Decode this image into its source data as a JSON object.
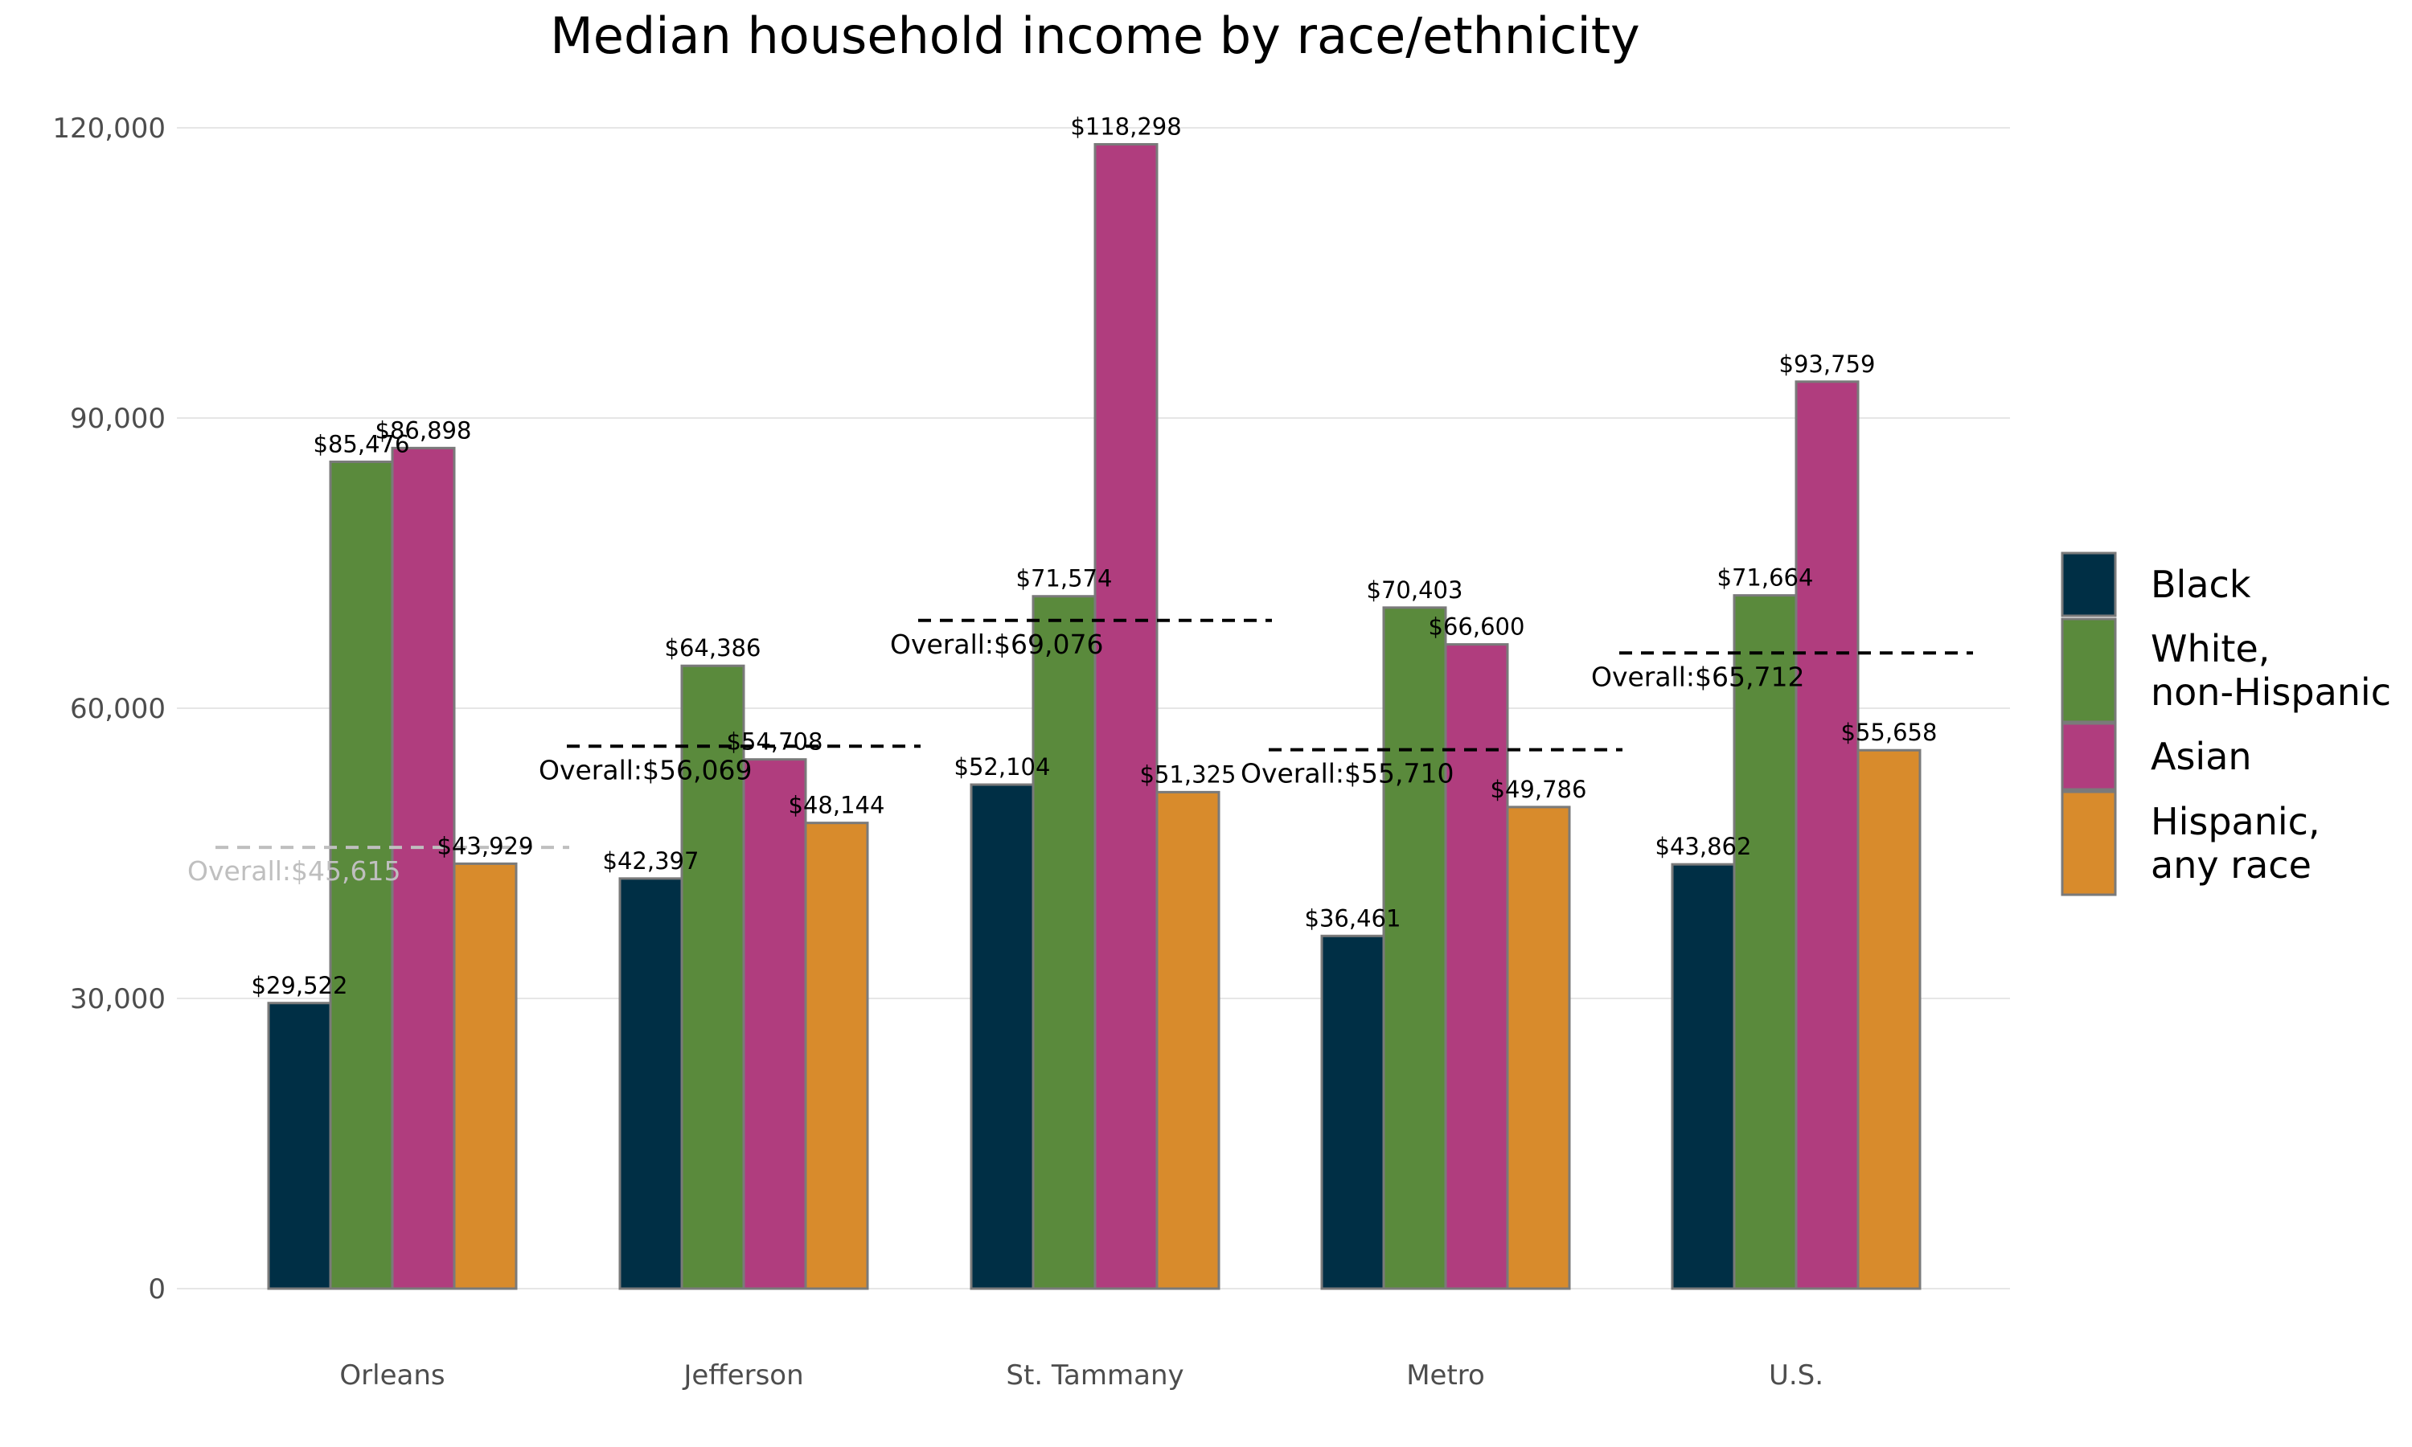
{
  "chart_data": {
    "type": "bar",
    "title": "Median household income by race/ethnicity",
    "xlabel": "",
    "ylabel": "",
    "ylim": [
      0,
      120000
    ],
    "yticks": [
      0,
      30000,
      60000,
      90000,
      120000
    ],
    "ytick_labels": [
      "0",
      "30,000",
      "60,000",
      "90,000",
      "120,000"
    ],
    "grid": true,
    "legend_position": "right",
    "categories": [
      "Orleans",
      "Jefferson",
      "St. Tammany",
      "Metro",
      "U.S."
    ],
    "series": [
      {
        "name": "Black",
        "legend_lines": [
          "Black"
        ],
        "color": "#002F45",
        "values": [
          29522,
          42397,
          52104,
          36461,
          43862
        ],
        "labels": [
          "$29,522",
          "$42,397",
          "$52,104",
          "$36,461",
          "$43,862"
        ]
      },
      {
        "name": "White, non-Hispanic",
        "legend_lines": [
          "White,",
          "non-Hispanic"
        ],
        "color": "#5A8A3C",
        "values": [
          85476,
          64386,
          71574,
          70403,
          71664
        ],
        "labels": [
          "$85,476",
          "$64,386",
          "$71,574",
          "$70,403",
          "$71,664"
        ]
      },
      {
        "name": "Asian",
        "legend_lines": [
          "Asian"
        ],
        "color": "#B03D7E",
        "values": [
          86898,
          54708,
          118298,
          66600,
          93759
        ],
        "labels": [
          "$86,898",
          "$54,708",
          "$118,298",
          "$66,600",
          "$93,759"
        ]
      },
      {
        "name": "Hispanic, any race",
        "legend_lines": [
          "Hispanic,",
          "any race"
        ],
        "color": "#D88B2C",
        "values": [
          43929,
          48144,
          51325,
          49786,
          55658
        ],
        "labels": [
          "$43,929",
          "$48,144",
          "$51,325",
          "$49,786",
          "$55,658"
        ]
      }
    ],
    "overall": {
      "values": [
        45615,
        56069,
        69076,
        55710,
        65712
      ],
      "labels": [
        "Overall:$45,615",
        "Overall:$56,069",
        "Overall:$69,076",
        "Overall:$55,710",
        "Overall:$65,712"
      ],
      "colors": [
        "#BFBFBF",
        "#000000",
        "#000000",
        "#000000",
        "#000000"
      ]
    }
  }
}
